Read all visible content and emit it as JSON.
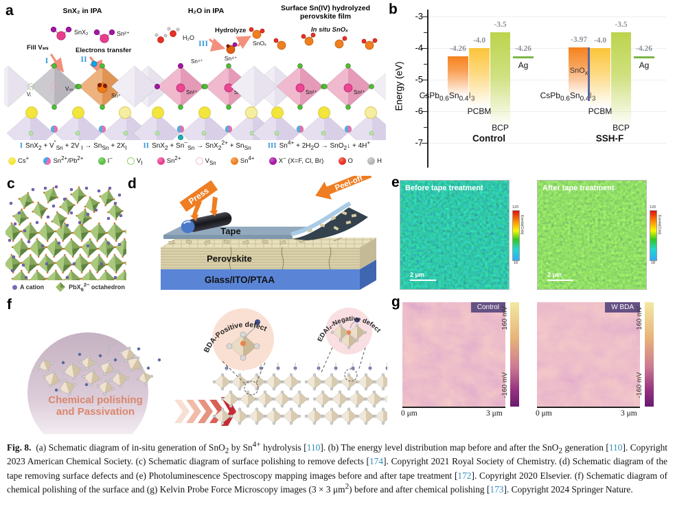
{
  "panel_a": {
    "label": "a",
    "col1_title": "SnX₂ in IPA",
    "col2_title": "H₂O in IPA",
    "col3_title_line1": "Surface Sn(IV) hydrolyzed",
    "col3_title_line2": "perovskite film",
    "mol_snx2": "SnX₂",
    "mol_sn2": "Sn²⁺",
    "fill_label": "Fill Vₛₙᵢ",
    "electrons_label": "Electrons transfer",
    "roman1": "I",
    "roman2": "II",
    "roman3": "III",
    "vi_label": "Vᵢ",
    "vsn_label": "Vₛₙ",
    "sn4_label": "Sn⁴⁺",
    "sn2_label": "Sn²⁺",
    "h2o_label": "H₂O",
    "hydrolyze_label": "Hydrolyze",
    "snox_label": "SnOₓ",
    "insitu_label": "In situ SnOₓ",
    "equations": [
      {
        "num": "I",
        "html": "SnX<sub>2</sub> + V<sup>″</sup><sub>Sn</sub> + 2V<sup>˙</sup><sub>I</sub> → Sn<sub>Sn</sub> + 2X<sub>I</sub>"
      },
      {
        "num": "II",
        "html": "SnX<sub>2</sub> + Sn<sup>−</sup><sub>Sn</sub> → SnX<sub>2</sub><sup>2+</sup> + Sn<sub>Sn</sub>"
      },
      {
        "num": "III",
        "html": "Sn<sup>4+</sup> + 2H<sub>2</sub>O → SnO<sub>2</sub>↓ + 4H<sup>+</sup>"
      }
    ],
    "legend": [
      {
        "type": "sphere",
        "color": "#f2e535",
        "html": "Cs<sup>+</sup>"
      },
      {
        "type": "split",
        "color": "#4da3e8",
        "color2": "#ef6aa8",
        "html": "Sn<sup>2+</sup>/Pb<sup>2+</sup>"
      },
      {
        "type": "sphere",
        "color": "#5cbf42",
        "html": "I<sup>−</sup>"
      },
      {
        "type": "open",
        "color": "#90d070",
        "html": "V<sub>I</sub>"
      },
      {
        "type": "sphere",
        "color": "#ea3f90",
        "html": "Sn<sup>2+</sup>"
      },
      {
        "type": "open",
        "color": "#f5bcd2",
        "html": "V<sub>Sn</sub>"
      },
      {
        "type": "sphere",
        "color": "#f07f1f",
        "html": "Sn<sup>4+</sup>"
      },
      {
        "type": "sphere",
        "color": "#a515a5",
        "html": "X<sup>−</sup> (X=F, Cl, Br)"
      },
      {
        "type": "sphere",
        "color": "#ea3023",
        "html": "O"
      },
      {
        "type": "sphere",
        "color": "#b5b5b5",
        "html": "H"
      }
    ]
  },
  "panel_b": {
    "label": "b",
    "ylabel": "Energy (eV)",
    "yticks": [
      "-3",
      "-4",
      "-5",
      "-6",
      "-7"
    ],
    "groups": [
      {
        "name": "Control",
        "bars": [
          {
            "kind": "perov",
            "ev": -4.26,
            "value": "-4.26",
            "material_html": "CsPb<sub>0.6</sub>Sn<sub>0.4</sub>I<sub>3</sub>"
          },
          {
            "kind": "pcbm",
            "ev": -4.0,
            "value": "-4.0",
            "material_html": "PCBM"
          },
          {
            "kind": "bcp",
            "ev": -3.5,
            "value": "-3.5",
            "material_html": "BCP"
          },
          {
            "kind": "agline",
            "ev": -4.26,
            "value": "-4.26",
            "material_html": "Ag"
          }
        ]
      },
      {
        "name": "SSH-F",
        "bars": [
          {
            "kind": "perov",
            "ev": -3.97,
            "value": "-3.97",
            "material_html": "CsPb<sub>0.6</sub>Sn<sub>0.4</sub>I<sub>3</sub>",
            "interlayer_html": "SnO<sub>x</sub>"
          },
          {
            "kind": "pcbm",
            "ev": -4.0,
            "value": "-4.0",
            "material_html": "PCBM"
          },
          {
            "kind": "bcp",
            "ev": -3.5,
            "value": "-3.5",
            "material_html": "BCP"
          },
          {
            "kind": "agline",
            "ev": -4.26,
            "value": "-4.26",
            "material_html": "Ag"
          }
        ]
      }
    ]
  },
  "chart_data": {
    "type": "bar",
    "title": "Energy level distribution map before and after SnO2 generation",
    "ylabel": "Energy (eV)",
    "ylim": [
      -7.5,
      -3
    ],
    "groups": [
      "Control",
      "SSH-F"
    ],
    "series": [
      {
        "name": "CsPb0.6Sn0.4I3",
        "values": [
          -4.26,
          -3.97
        ]
      },
      {
        "name": "PCBM",
        "values": [
          -4.0,
          -4.0
        ]
      },
      {
        "name": "BCP",
        "values": [
          -3.5,
          -3.5
        ]
      },
      {
        "name": "Ag",
        "values": [
          -4.26,
          -4.26
        ]
      }
    ],
    "annotations": [
      "SnOx interlayer present in SSH-F perovskite bar"
    ]
  },
  "panel_c": {
    "label": "c",
    "legend_cation": "A cation",
    "legend_oct_html": "PbX<sub>6</sub><sup>2−</sup> octahedron"
  },
  "panel_d": {
    "label": "d",
    "press": "Press",
    "peel": "Peel-off",
    "tape": "Tape",
    "perovskite": "Perovskite",
    "substrate": "Glass/ITO/PTAA"
  },
  "panel_e": {
    "label": "e",
    "left_title": "Before tape treatment",
    "right_title": "After tape treatment",
    "scalebar": "2 μm",
    "cbar_max": "120",
    "cbar_min": "18",
    "cbar_label": "Events[Cnts]"
  },
  "panel_f": {
    "label": "f",
    "process_line1": "Chemical polishing",
    "process_line2": "and Passivation",
    "callout1": "BDA-Positive defect",
    "callout2": "EDAI₂-Negative defect"
  },
  "panel_g": {
    "label": "g",
    "left_badge": "Control",
    "right_badge": "W BDA",
    "cbar_top": "160 mV",
    "cbar_bottom": "-160 mV",
    "x_left": "0 μm",
    "x_right": "3 μm"
  },
  "caption": {
    "html": "<b>Fig. 8.</b>&nbsp; (a) Schematic diagram of in-situ generation of SnO<sub>2</sub> by Sn<sup>4+</sup> hydrolysis [<span class='ref' data-name='citation-110' data-interactable='true'>110</span>]. (b) The energy level distribution map before and after the SnO<sub>2</sub> generation [<span class='ref' data-name='citation-110b' data-interactable='true'>110</span>]. Copyright 2023 American Chemical Society. (c) Schematic diagram of surface polishing to remove defects [<span class='ref' data-name='citation-174' data-interactable='true'>174</span>]. Copyright 2021 Royal Society of Chemistry. (d) Schematic diagram of the tape removing surface defects and (e) Photoluminescence Spectroscopy mapping images before and after tape treatment [<span class='ref' data-name='citation-172' data-interactable='true'>172</span>]. Copyright 2020 Elsevier. (f) Schematic diagram of chemical polishing of the surface and (g) Kelvin Probe Force Microscopy images (3 × 3 μm<sup>2</sup>) before and after chemical polishing [<span class='ref' data-name='citation-173' data-interactable='true'>173</span>]. Copyright 2024 Springer Nature."
  }
}
